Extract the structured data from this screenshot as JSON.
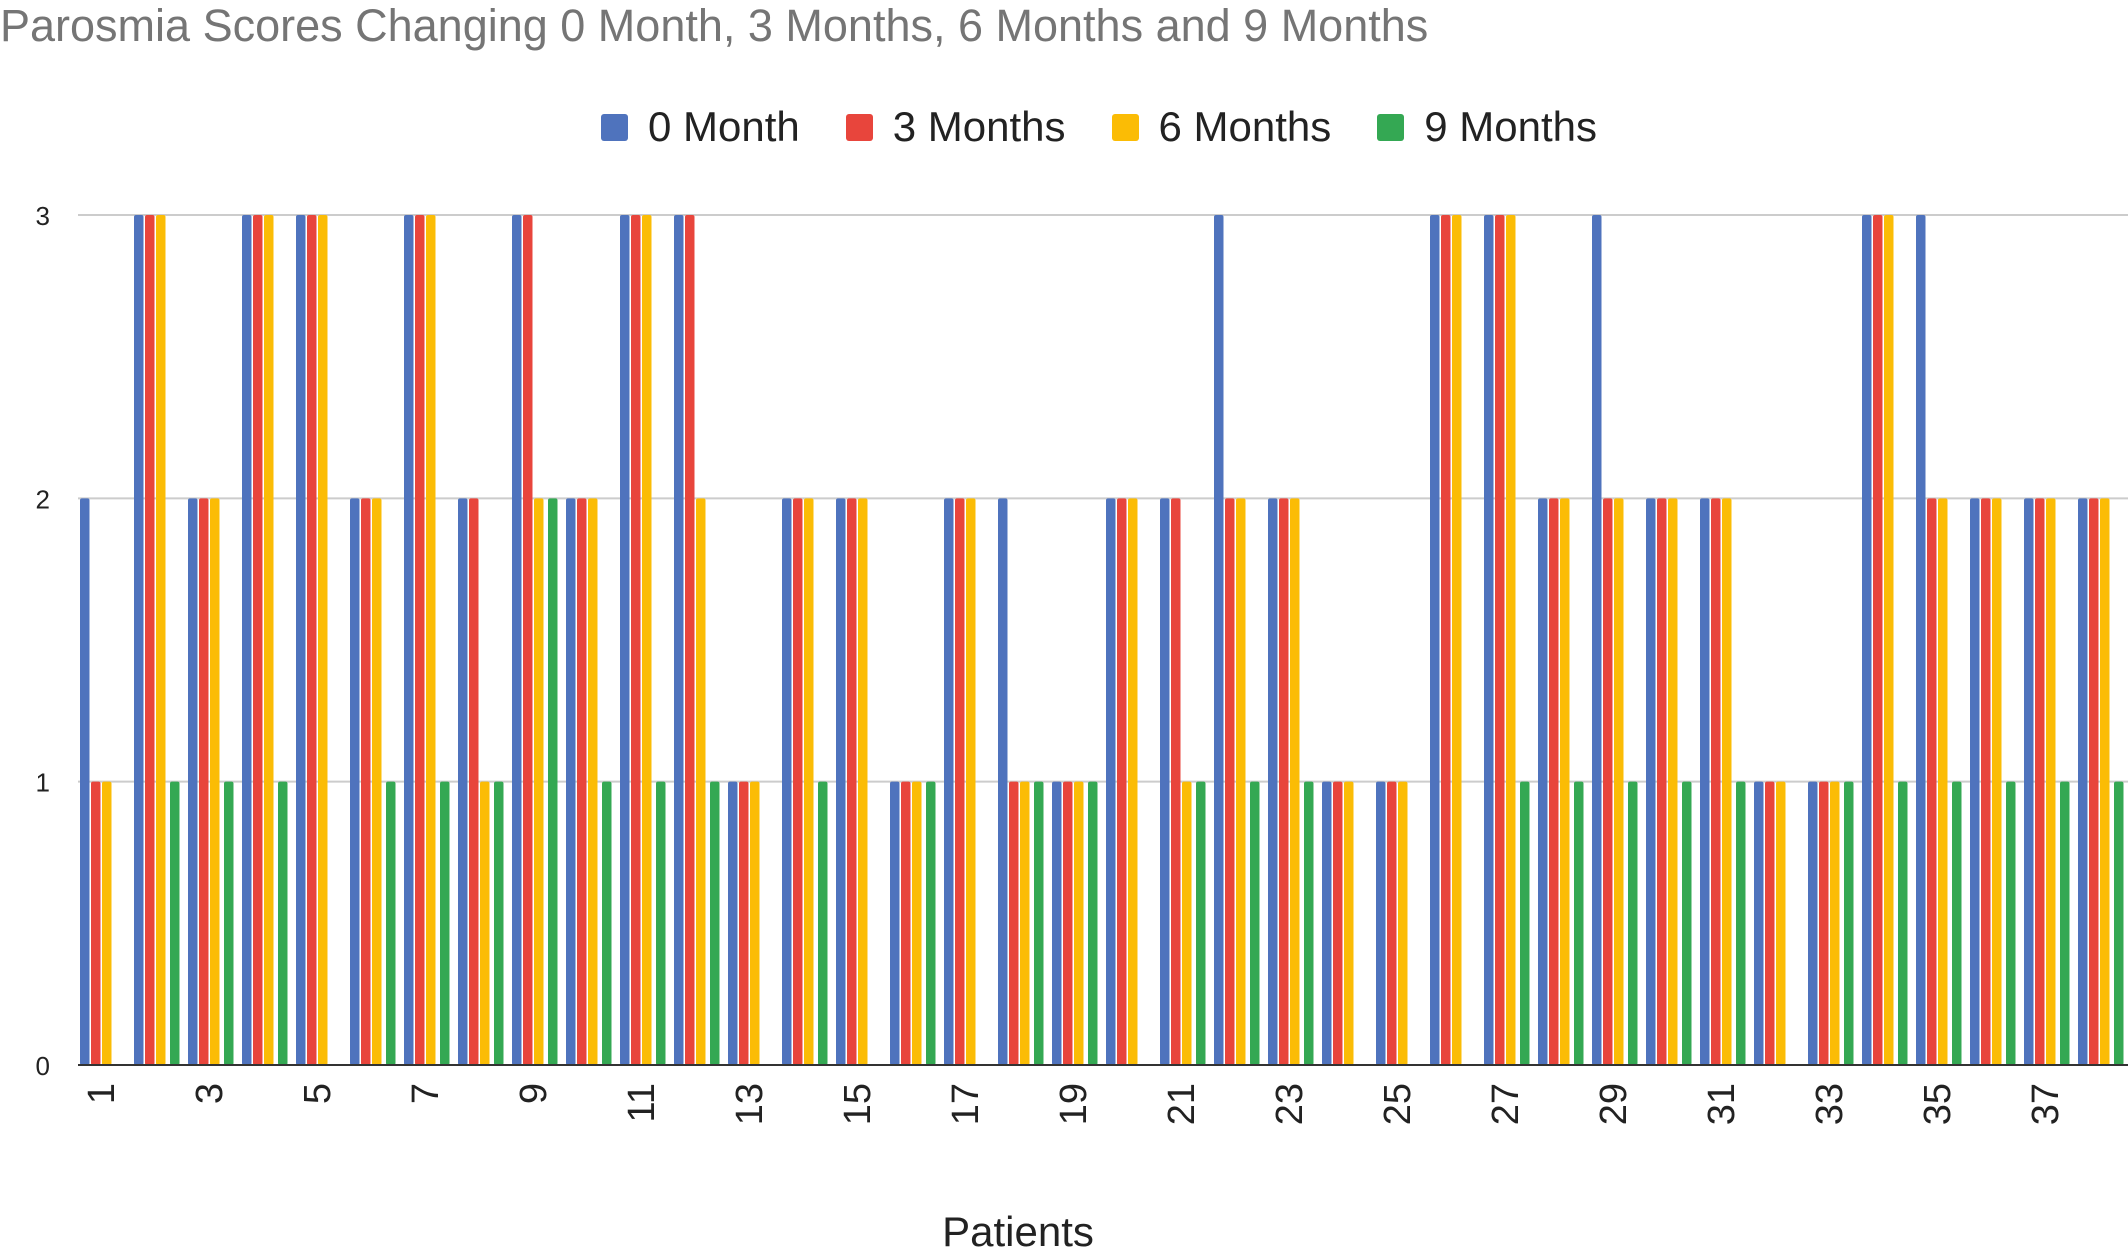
{
  "chart_data": {
    "type": "bar",
    "title": "Parosmia Scores Changing 0 Month, 3 Months, 6 Months and 9 Months",
    "xlabel": "Patients",
    "ylabel": "",
    "ylim": [
      0,
      3
    ],
    "yticks": [
      "0",
      "1",
      "2",
      "3"
    ],
    "grid": true,
    "legend": "top-center",
    "categories": [
      "1",
      "2",
      "3",
      "4",
      "5",
      "6",
      "7",
      "8",
      "9",
      "10",
      "11",
      "12",
      "13",
      "14",
      "15",
      "16",
      "17",
      "18",
      "19",
      "20",
      "21",
      "22",
      "23",
      "24",
      "25",
      "26",
      "27",
      "28",
      "29",
      "30",
      "31",
      "32",
      "33",
      "34",
      "35",
      "36",
      "37",
      "38"
    ],
    "xtick_labels": [
      "1",
      "3",
      "5",
      "7",
      "9",
      "11",
      "13",
      "15",
      "17",
      "19",
      "21",
      "23",
      "25",
      "27",
      "29",
      "31",
      "33",
      "35",
      "37"
    ],
    "series": [
      {
        "name": "0 Month",
        "color": "#4f73bd",
        "values": [
          2,
          3,
          2,
          3,
          3,
          2,
          3,
          2,
          3,
          2,
          3,
          3,
          1,
          2,
          2,
          1,
          2,
          2,
          1,
          2,
          2,
          3,
          2,
          1,
          1,
          3,
          3,
          2,
          3,
          2,
          2,
          1,
          1,
          3,
          3,
          2,
          2,
          2
        ]
      },
      {
        "name": "3 Months",
        "color": "#e8453c",
        "values": [
          1,
          3,
          2,
          3,
          3,
          2,
          3,
          2,
          3,
          2,
          3,
          3,
          1,
          2,
          2,
          1,
          2,
          1,
          1,
          2,
          2,
          2,
          2,
          1,
          1,
          3,
          3,
          2,
          2,
          2,
          2,
          1,
          1,
          3,
          2,
          2,
          2,
          2
        ]
      },
      {
        "name": "6 Months",
        "color": "#fbbc05",
        "values": [
          1,
          3,
          2,
          3,
          3,
          2,
          3,
          1,
          2,
          2,
          3,
          2,
          1,
          2,
          2,
          1,
          2,
          1,
          1,
          2,
          1,
          2,
          2,
          1,
          1,
          3,
          3,
          2,
          2,
          2,
          2,
          1,
          1,
          3,
          2,
          2,
          2,
          2
        ]
      },
      {
        "name": "9 Months",
        "color": "#34a853",
        "values": [
          0,
          1,
          1,
          1,
          0,
          1,
          1,
          1,
          2,
          1,
          1,
          1,
          0,
          1,
          0,
          1,
          0,
          1,
          1,
          0,
          1,
          1,
          1,
          0,
          0,
          0,
          1,
          1,
          1,
          1,
          1,
          0,
          1,
          1,
          1,
          1,
          1,
          1
        ]
      }
    ]
  }
}
